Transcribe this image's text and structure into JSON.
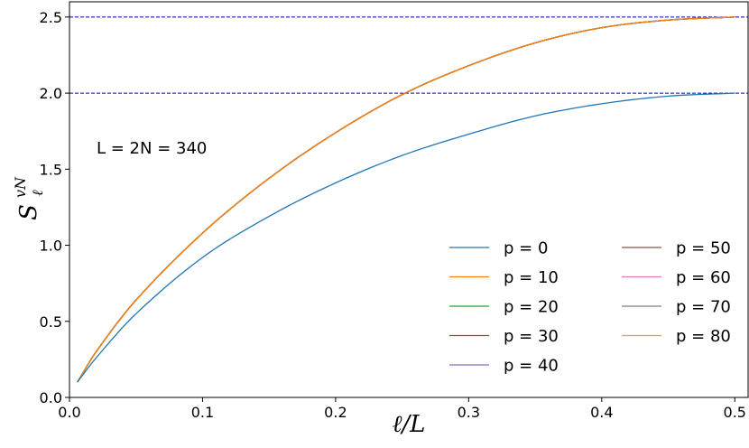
{
  "chart_data": {
    "type": "line",
    "xlabel": "ℓ/L",
    "ylabel_main": "S",
    "ylabel_sub": "ℓ",
    "ylabel_sup": "vN",
    "xlim": [
      0.0,
      0.51
    ],
    "ylim": [
      0.0,
      2.6
    ],
    "xticks": [
      0.0,
      0.1,
      0.2,
      0.3,
      0.4,
      0.5
    ],
    "yticks": [
      0.0,
      0.5,
      1.0,
      1.5,
      2.0,
      2.5
    ],
    "xtick_labels": [
      "0.0",
      "0.1",
      "0.2",
      "0.3",
      "0.4",
      "0.5"
    ],
    "ytick_labels": [
      "0.0",
      "0.5",
      "1.0",
      "1.5",
      "2.0",
      "2.5"
    ],
    "grid": false,
    "annotation": "L = 2N = 340",
    "hlines": [
      {
        "y": 2.0,
        "color": "#0000cc",
        "style": "dashed"
      },
      {
        "y": 2.5,
        "color": "#0000cc",
        "style": "dashed"
      }
    ],
    "legend_position": "lower-right",
    "legend_columns": 2,
    "series": [
      {
        "name": "p = 0",
        "color": "#1f77b4",
        "limit": 2.0,
        "x": [
          0.0059,
          0.02,
          0.05,
          0.1,
          0.15,
          0.2,
          0.25,
          0.3,
          0.35,
          0.4,
          0.45,
          0.5
        ],
        "y": [
          0.1,
          0.26,
          0.55,
          0.92,
          1.19,
          1.41,
          1.59,
          1.73,
          1.85,
          1.93,
          1.98,
          2.0
        ]
      },
      {
        "name": "p = 10",
        "color": "#ff7f0e",
        "limit": 2.5,
        "x": [
          0.0059,
          0.02,
          0.05,
          0.1,
          0.15,
          0.2,
          0.25,
          0.3,
          0.35,
          0.4,
          0.45,
          0.5
        ],
        "y": [
          0.1,
          0.3,
          0.64,
          1.08,
          1.44,
          1.74,
          1.99,
          2.18,
          2.33,
          2.43,
          2.48,
          2.5
        ]
      },
      {
        "name": "p = 20",
        "color": "#2ca02c",
        "limit": 2.5,
        "x": [
          0.0059,
          0.02,
          0.05,
          0.1,
          0.15,
          0.2,
          0.25,
          0.3,
          0.35,
          0.4,
          0.45,
          0.5
        ],
        "y": [
          0.1,
          0.3,
          0.64,
          1.08,
          1.44,
          1.74,
          1.99,
          2.18,
          2.33,
          2.43,
          2.48,
          2.5
        ]
      },
      {
        "name": "p = 30",
        "color": "#d62728",
        "limit": 2.5,
        "x": [
          0.0059,
          0.02,
          0.05,
          0.1,
          0.15,
          0.2,
          0.25,
          0.3,
          0.35,
          0.4,
          0.45,
          0.5
        ],
        "y": [
          0.1,
          0.3,
          0.64,
          1.08,
          1.44,
          1.74,
          1.99,
          2.18,
          2.33,
          2.43,
          2.48,
          2.5
        ]
      },
      {
        "name": "p = 40",
        "color": "#9467bd",
        "limit": 2.5,
        "x": [
          0.0059,
          0.02,
          0.05,
          0.1,
          0.15,
          0.2,
          0.25,
          0.3,
          0.35,
          0.4,
          0.45,
          0.5
        ],
        "y": [
          0.1,
          0.3,
          0.64,
          1.08,
          1.44,
          1.74,
          1.99,
          2.18,
          2.33,
          2.43,
          2.48,
          2.5
        ]
      },
      {
        "name": "p = 50",
        "color": "#8c564b",
        "limit": 2.5,
        "x": [
          0.0059,
          0.02,
          0.05,
          0.1,
          0.15,
          0.2,
          0.25,
          0.3,
          0.35,
          0.4,
          0.45,
          0.5
        ],
        "y": [
          0.1,
          0.3,
          0.64,
          1.08,
          1.44,
          1.74,
          1.99,
          2.18,
          2.33,
          2.43,
          2.48,
          2.5
        ]
      },
      {
        "name": "p = 60",
        "color": "#e377c2",
        "limit": 2.5,
        "x": [
          0.0059,
          0.02,
          0.05,
          0.1,
          0.15,
          0.2,
          0.25,
          0.3,
          0.35,
          0.4,
          0.45,
          0.5
        ],
        "y": [
          0.1,
          0.3,
          0.64,
          1.08,
          1.44,
          1.74,
          1.99,
          2.18,
          2.33,
          2.43,
          2.48,
          2.5
        ]
      },
      {
        "name": "p = 70",
        "color": "#7f7f7f",
        "limit": 2.5,
        "x": [
          0.0059,
          0.02,
          0.05,
          0.1,
          0.15,
          0.2,
          0.25,
          0.3,
          0.35,
          0.4,
          0.45,
          0.5
        ],
        "y": [
          0.1,
          0.3,
          0.64,
          1.08,
          1.44,
          1.74,
          1.99,
          2.18,
          2.33,
          2.43,
          2.48,
          2.5
        ]
      },
      {
        "name": "p = 80",
        "color": "#bcbd22",
        "limit": 2.5,
        "x": [
          0.0059,
          0.02,
          0.05,
          0.1,
          0.15,
          0.2,
          0.25,
          0.3,
          0.35,
          0.4,
          0.45,
          0.5
        ],
        "y": [
          0.1,
          0.3,
          0.64,
          1.08,
          1.44,
          1.74,
          1.99,
          2.18,
          2.33,
          2.43,
          2.48,
          2.5
        ]
      }
    ]
  }
}
